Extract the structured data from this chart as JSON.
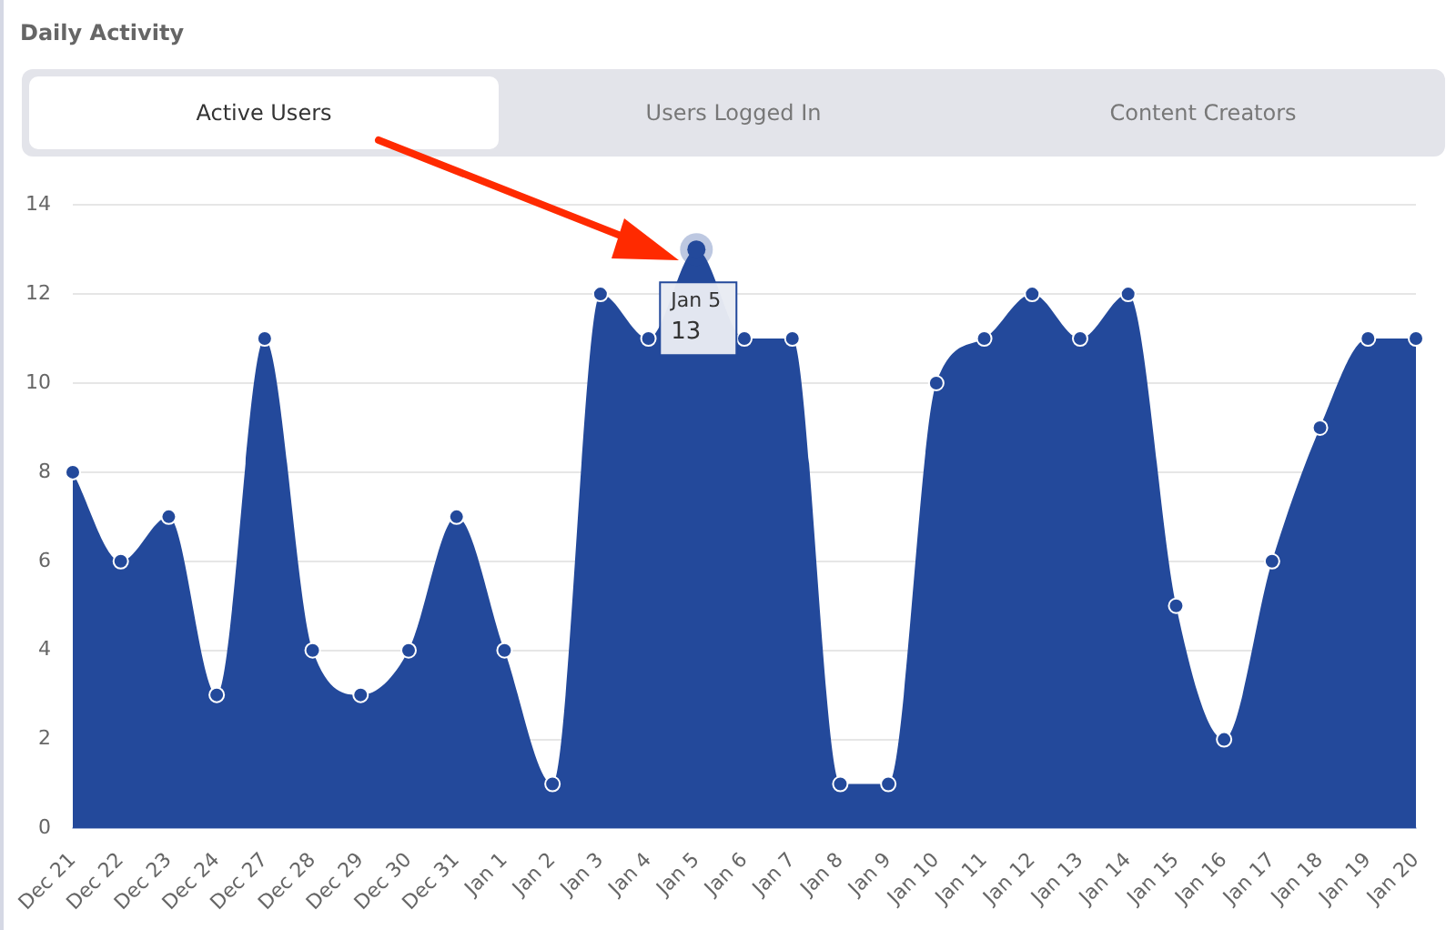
{
  "chart_data": {
    "type": "area",
    "title": "Daily Activity",
    "categories": [
      "Dec 21",
      "Dec 22",
      "Dec 23",
      "Dec 24",
      "Dec 27",
      "Dec 28",
      "Dec 29",
      "Dec 30",
      "Dec 31",
      "Jan 1",
      "Jan 2",
      "Jan 3",
      "Jan 4",
      "Jan 5",
      "Jan 6",
      "Jan 7",
      "Jan 8",
      "Jan 9",
      "Jan 10",
      "Jan 11",
      "Jan 12",
      "Jan 13",
      "Jan 14",
      "Jan 15",
      "Jan 16",
      "Jan 17",
      "Jan 18",
      "Jan 19",
      "Jan 20"
    ],
    "series": [
      {
        "color": "#23499b",
        "values": [
          8,
          6,
          7,
          3,
          11,
          4,
          3,
          4,
          7,
          4,
          1,
          12,
          11,
          13,
          11,
          11,
          1,
          1,
          10,
          11,
          12,
          11,
          12,
          5,
          2,
          6,
          9,
          11,
          11
        ]
      }
    ],
    "ylim": [
      0,
      14
    ],
    "yticks": [
      0,
      2,
      4,
      6,
      8,
      10,
      12,
      14
    ],
    "grid": "y",
    "legend": false,
    "marker": "circle",
    "annotations": [
      "Active Users",
      "Users Logged In",
      "Content Creators",
      {
        "text": "Jan 5\n13",
        "x": "Jan 5",
        "y": 13
      }
    ]
  }
}
